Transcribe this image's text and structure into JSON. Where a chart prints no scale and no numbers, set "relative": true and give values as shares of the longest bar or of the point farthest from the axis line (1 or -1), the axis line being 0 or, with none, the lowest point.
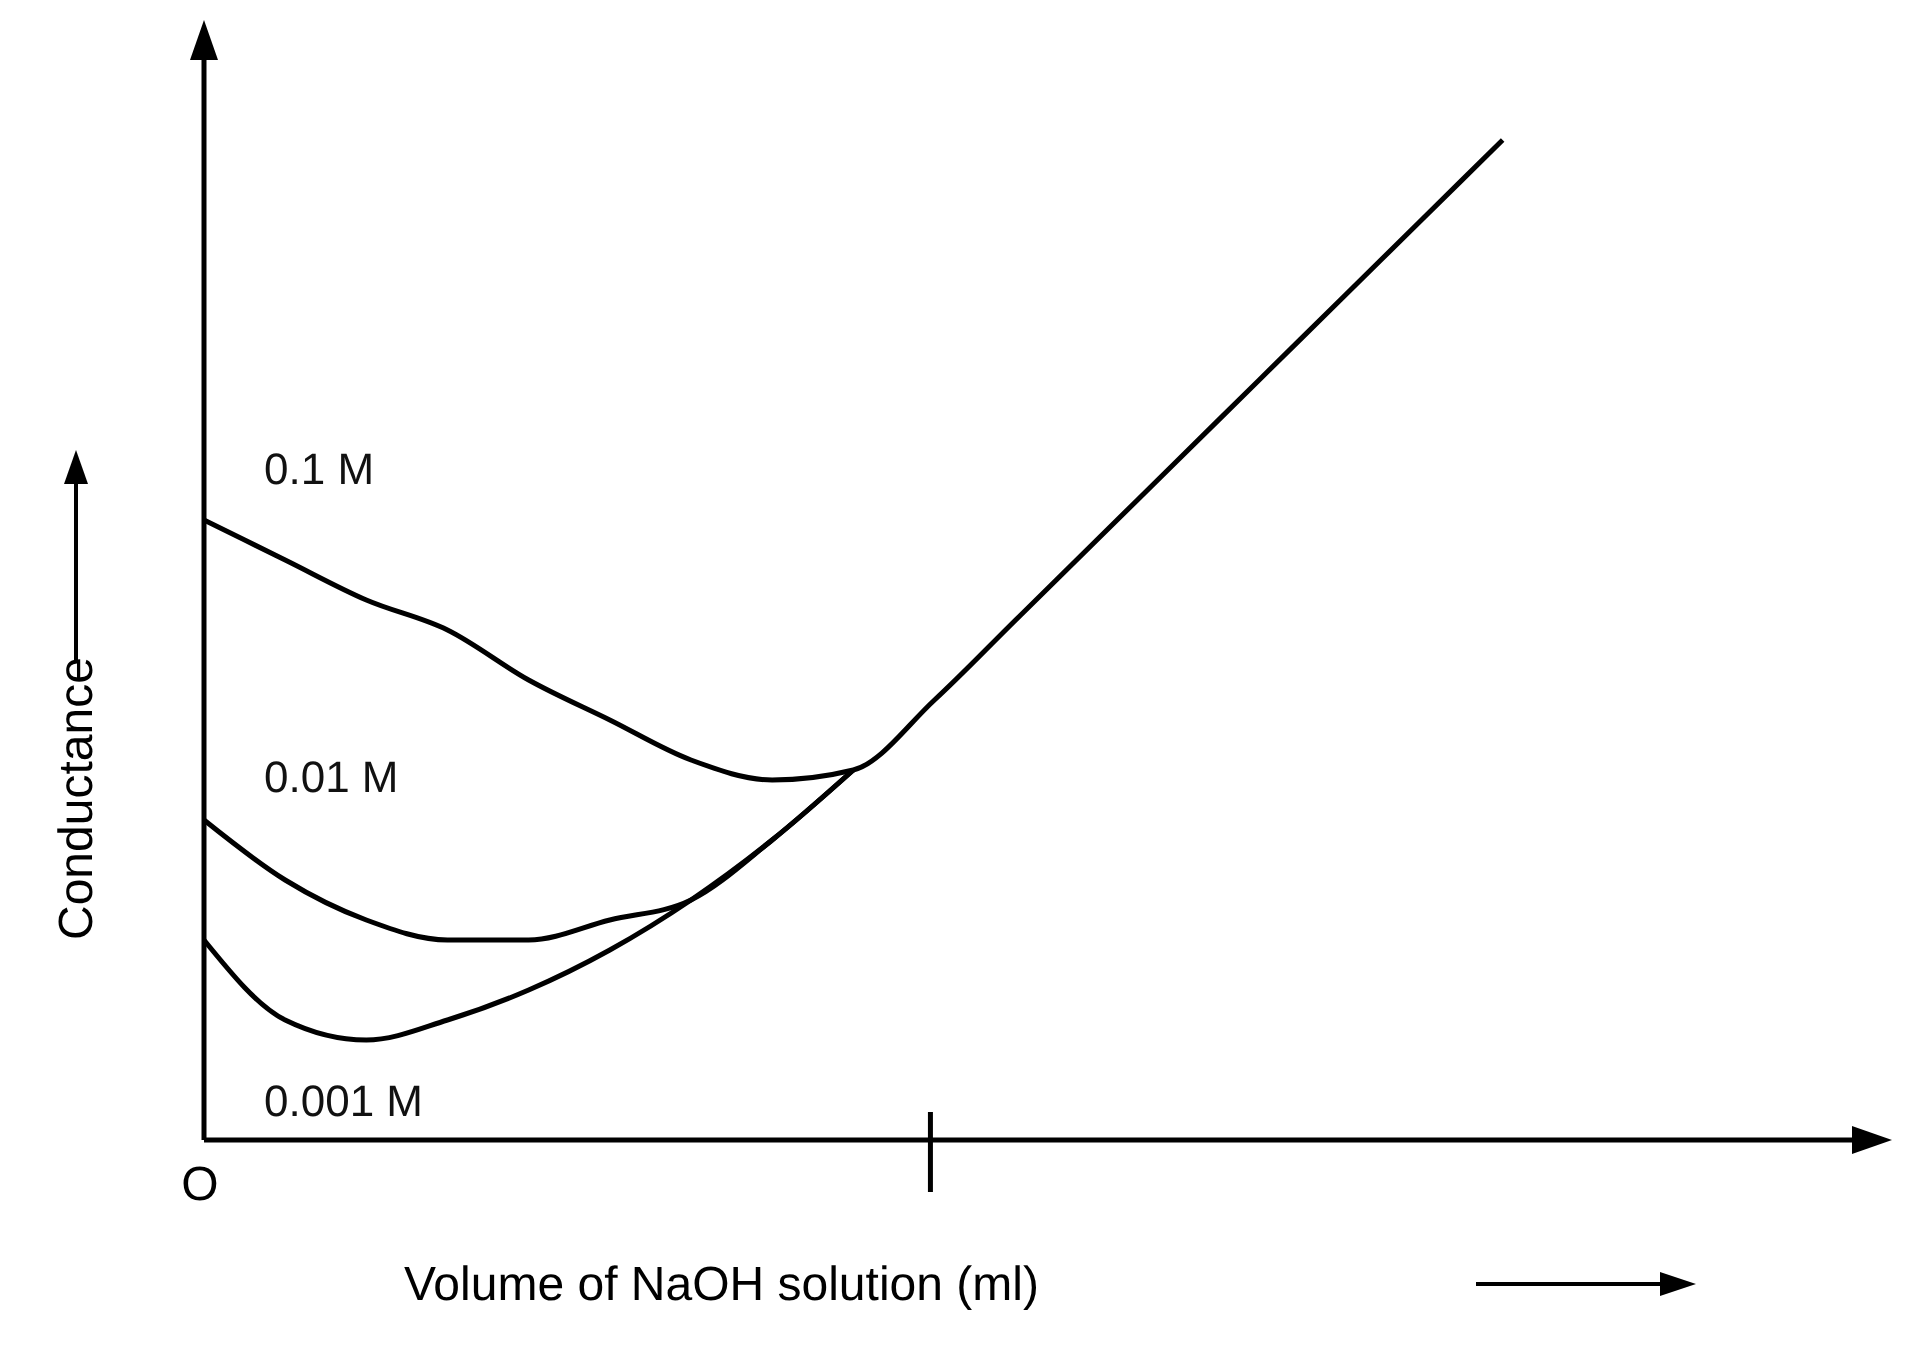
{
  "chart_data": {
    "type": "line",
    "relative": true,
    "xlabel": "Volume of NaOH solution (ml)",
    "ylabel": "Conductance",
    "annotations": [
      "O"
    ],
    "marker": "none",
    "line_style": "solid",
    "grid": false,
    "legend": false,
    "categories": [
      null,
      null,
      null,
      null,
      null,
      null,
      null,
      null,
      null,
      null,
      null,
      null,
      null,
      null,
      null,
      null,
      null
    ],
    "series": [
      {
        "name": "0.1 M",
        "color": "#000000",
        "values": [
          0.62,
          0.58,
          0.54,
          0.51,
          0.46,
          0.42,
          0.38,
          0.36,
          0.37,
          0.44,
          0.52,
          0.6,
          0.68,
          0.76,
          0.84,
          0.92,
          1.0
        ]
      },
      {
        "name": "0.01 M",
        "color": "#000000",
        "values": [
          0.32,
          0.26,
          0.22,
          0.2,
          0.2,
          0.22,
          0.24,
          0.3,
          0.37,
          null,
          null,
          null,
          null,
          null,
          null,
          null,
          null
        ]
      },
      {
        "name": "0.001 M",
        "color": "#000000",
        "values": [
          0.2,
          0.12,
          0.1,
          0.12,
          0.15,
          0.19,
          0.24,
          0.3,
          0.37,
          null,
          null,
          null,
          null,
          null,
          null,
          null,
          null
        ]
      }
    ]
  }
}
